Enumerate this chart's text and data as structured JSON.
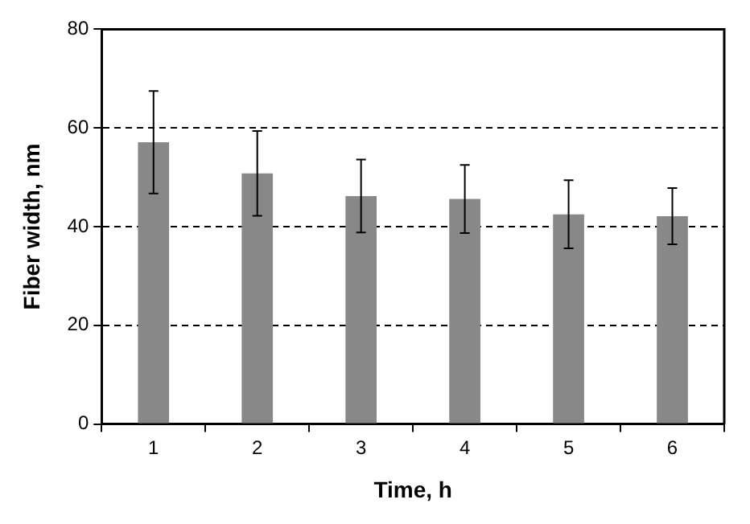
{
  "chart_data": {
    "type": "bar",
    "xlabel": "Time, h",
    "ylabel": "Fiber width, nm",
    "categories": [
      "1",
      "2",
      "3",
      "4",
      "5",
      "6"
    ],
    "values": [
      57.1,
      50.8,
      46.2,
      45.6,
      42.5,
      42.1
    ],
    "errors": [
      10.4,
      8.6,
      7.4,
      6.9,
      6.9,
      5.7
    ],
    "color": "#888888",
    "ylim": [
      0,
      80
    ],
    "yticks": [
      0,
      20,
      40,
      60,
      80
    ],
    "grid": "y",
    "legend": false
  }
}
